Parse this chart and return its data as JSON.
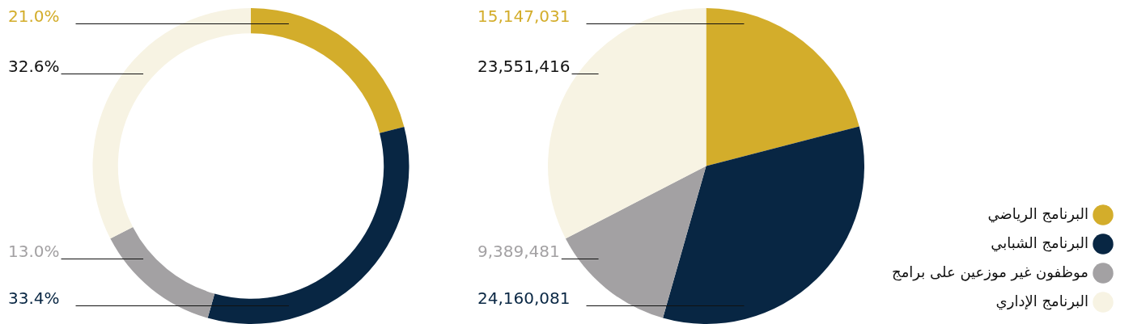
{
  "chart_data": [
    {
      "type": "donut",
      "categories": [
        null,
        null,
        null,
        null
      ],
      "values": [
        21.0,
        33.4,
        13.0,
        32.6
      ],
      "colors": [
        "#d3ad2b",
        "#082643",
        "#a3a1a3",
        "#f7f3e3"
      ],
      "value_labels": [
        "21.0%",
        "33.4%",
        "13.0%",
        "32.6%"
      ],
      "legend": false
    },
    {
      "type": "pie",
      "categories": [
        "البرنامج الرياضي",
        "البرنامج الشبابي",
        "موظفون غير موزعين على برامج",
        "البرنامج الإداري"
      ],
      "values": [
        15147031,
        24160081,
        9389481,
        23551416
      ],
      "colors": [
        "#d3ad2b",
        "#082643",
        "#a3a1a3",
        "#f7f3e3"
      ],
      "value_labels": [
        "15,147,031",
        "24,160,081",
        "9,389,481",
        "23,551,416"
      ],
      "legend": "bottom right"
    }
  ]
}
